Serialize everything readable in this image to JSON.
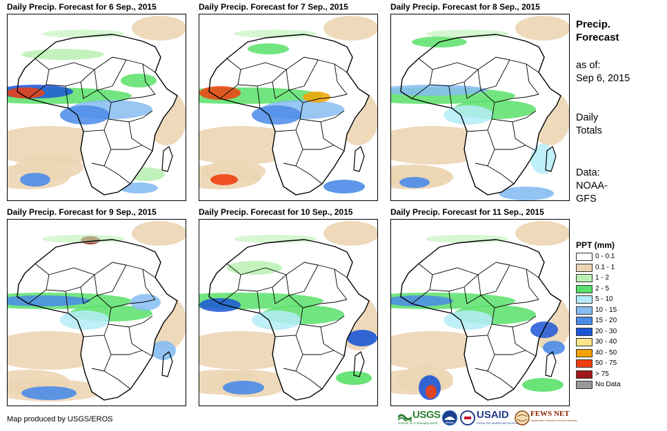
{
  "panels": [
    {
      "title": "Daily Precip. Forecast for 6 Sep., 2015"
    },
    {
      "title": "Daily Precip. Forecast for 7 Sep., 2015"
    },
    {
      "title": "Daily Precip. Forecast for 8 Sep., 2015"
    },
    {
      "title": "Daily Precip. Forecast for 9 Sep., 2015"
    },
    {
      "title": "Daily Precip. Forecast for 10 Sep., 2015"
    },
    {
      "title": "Daily Precip. Forecast for 11 Sep., 2015"
    }
  ],
  "side": {
    "title_line1": "Precip.",
    "title_line2": "Forecast",
    "asof_line1": "as of:",
    "asof_line2": "Sep 6, 2015",
    "daily_line1": "Daily",
    "daily_line2": "Totals",
    "data_line1": "Data:",
    "data_line2": "NOAA-",
    "data_line3": "GFS"
  },
  "legend": {
    "title": "PPT (mm)",
    "items": [
      {
        "label": "0 - 0.1",
        "color": "#ffffff"
      },
      {
        "label": "0.1 - 1",
        "color": "#ecd5b4"
      },
      {
        "label": "1 - 2",
        "color": "#b9f0b2"
      },
      {
        "label": "2 - 5",
        "color": "#5ae06a"
      },
      {
        "label": "5 - 10",
        "color": "#b4ecf8"
      },
      {
        "label": "10 - 15",
        "color": "#86bdf2"
      },
      {
        "label": "15 - 20",
        "color": "#4b8be8"
      },
      {
        "label": "20 - 30",
        "color": "#1c56d6"
      },
      {
        "label": "30 - 40",
        "color": "#fde68a"
      },
      {
        "label": "40 - 50",
        "color": "#f5a300"
      },
      {
        "label": "50 - 75",
        "color": "#f04010"
      },
      {
        "label": "> 75",
        "color": "#a01818"
      },
      {
        "label": "No Data",
        "color": "#999999"
      }
    ]
  },
  "footer": {
    "credit": "Map produced by USGS/EROS",
    "logos": {
      "usgs": "USGS",
      "usgs_tagline": "science for a changing world",
      "noaa": "NOAA",
      "usaid": "USAID",
      "usaid_tagline": "FROM THE AMERICAN PEOPLE",
      "fewsnet": "FEWS NET",
      "fewsnet_tagline": "FAMINE EARLY WARNING SYSTEMS NETWORK"
    }
  }
}
